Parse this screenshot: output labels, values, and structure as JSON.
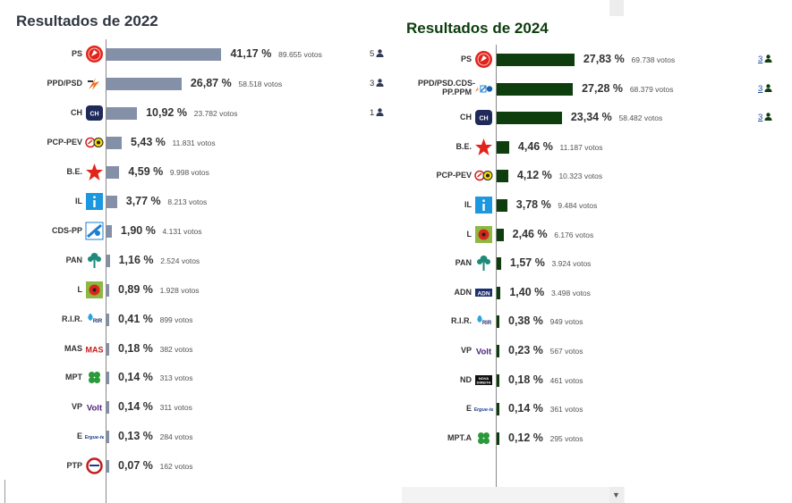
{
  "colors": {
    "bar2022": "#8490a8",
    "bar2024": "#0e3d0e",
    "title2024": "#0c3d0c",
    "title2022": "#2f3542"
  },
  "chart_data": [
    {
      "type": "bar",
      "title": "Resultados de 2022",
      "categories": [
        "PS",
        "PPD/PSD",
        "CH",
        "PCP-PEV",
        "B.E.",
        "IL",
        "CDS-PP",
        "PAN",
        "L",
        "R.I.R.",
        "MAS",
        "MPT",
        "VP",
        "E",
        "PTP"
      ],
      "values": [
        41.17,
        26.87,
        10.92,
        5.43,
        4.59,
        3.77,
        1.9,
        1.16,
        0.89,
        0.41,
        0.18,
        0.14,
        0.14,
        0.13,
        0.07
      ],
      "pct_labels": [
        "41,17 %",
        "26,87 %",
        "10,92 %",
        "5,43 %",
        "4,59 %",
        "3,77 %",
        "1,90 %",
        "1,16 %",
        "0,89 %",
        "0,41 %",
        "0,18 %",
        "0,14 %",
        "0,14 %",
        "0,13 %",
        "0,07 %"
      ],
      "votes_labels": [
        "89.655 votos",
        "58.518 votos",
        "23.782 votos",
        "11.831 votos",
        "9.998 votos",
        "8.213 votos",
        "4.131 votos",
        "2.524 votos",
        "1.928 votos",
        "899 votos",
        "382 votos",
        "313 votos",
        "311 votos",
        "284 votos",
        "162 votos"
      ],
      "seats": [
        "5",
        "3",
        "1"
      ],
      "logos": [
        "ps-logo",
        "psd-logo",
        "chega-logo",
        "cdu-logo",
        "be-star-logo",
        "il-logo",
        "cds-logo",
        "pan-tree-logo",
        "livre-poppy-logo",
        "rir-logo",
        "mas-logo",
        "mpt-clover-logo",
        "volt-logo",
        "ergue-te-logo",
        "ptp-logo"
      ]
    },
    {
      "type": "bar",
      "title": "Resultados de 2024",
      "categories": [
        "PS",
        "PPD/PSD.CDS-PP.PPM",
        "CH",
        "B.E.",
        "PCP-PEV",
        "IL",
        "L",
        "PAN",
        "ADN",
        "R.I.R.",
        "VP",
        "ND",
        "E",
        "MPT.A"
      ],
      "values": [
        27.83,
        27.28,
        23.34,
        4.46,
        4.12,
        3.78,
        2.46,
        1.57,
        1.4,
        0.38,
        0.23,
        0.18,
        0.14,
        0.12
      ],
      "pct_labels": [
        "27,83 %",
        "27,28 %",
        "23,34 %",
        "4,46 %",
        "4,12 %",
        "3,78 %",
        "2,46 %",
        "1,57 %",
        "1,40 %",
        "0,38 %",
        "0,23 %",
        "0,18 %",
        "0,14 %",
        "0,12 %"
      ],
      "votes_labels": [
        "69.738 votos",
        "68.379 votos",
        "58.482 votos",
        "11.187 votos",
        "10.323 votos",
        "9.484 votos",
        "6.176 votos",
        "3.924 votos",
        "3.498 votos",
        "949 votos",
        "567 votos",
        "461 votos",
        "361 votos",
        "295 votos"
      ],
      "seats": [
        "3",
        "3",
        "3"
      ],
      "logos": [
        "ps-logo",
        "ad-coalition-logo",
        "chega-logo",
        "be-star-logo",
        "cdu-logo",
        "il-logo",
        "livre-poppy-logo",
        "pan-tree-logo",
        "adn-logo",
        "rir-logo",
        "volt-logo",
        "nova-direita-logo",
        "ergue-te-logo",
        "mpt-clover-logo"
      ]
    }
  ]
}
